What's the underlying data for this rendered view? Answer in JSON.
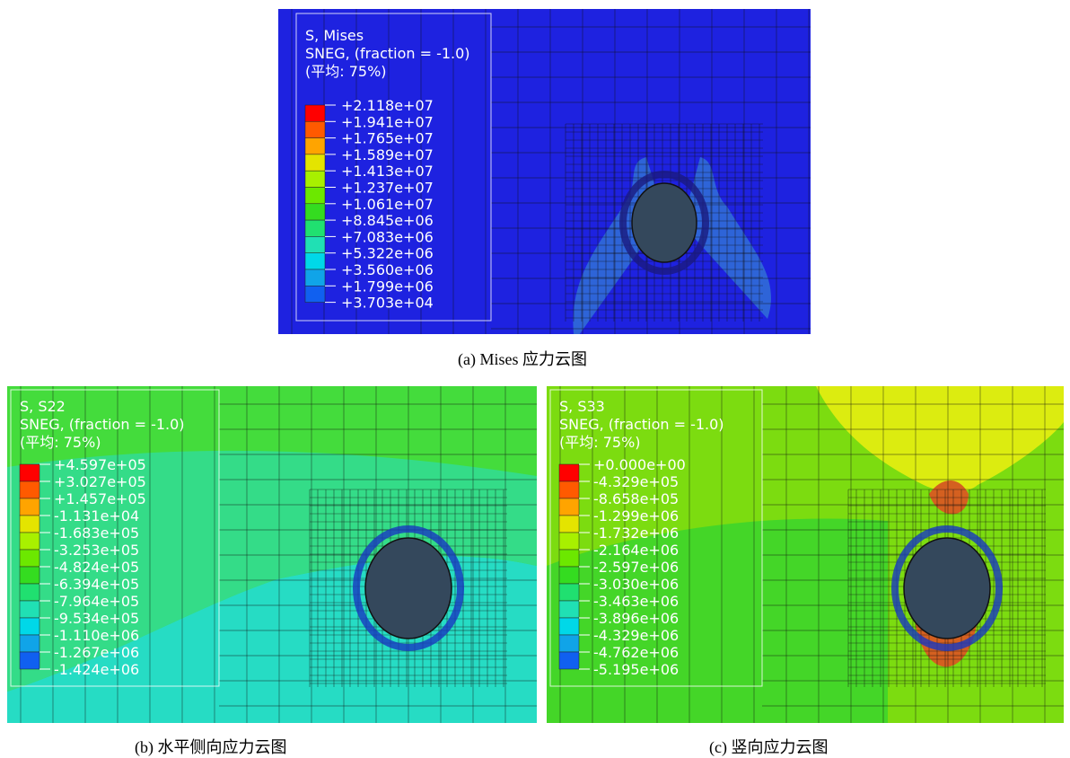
{
  "panels": [
    {
      "legend_title": [
        "S, Mises",
        "SNEG, (fraction = -1.0)",
        "(平均: 75%)"
      ],
      "legend_labels": [
        "+2.118e+07",
        "+1.941e+07",
        "+1.765e+07",
        "+1.589e+07",
        "+1.413e+07",
        "+1.237e+07",
        "+1.061e+07",
        "+8.845e+06",
        "+7.083e+06",
        "+5.322e+06",
        "+3.560e+06",
        "+1.799e+06",
        "+3.703e+04"
      ],
      "caption": "(a) Mises 应力云图"
    },
    {
      "legend_title": [
        "S, S22",
        "SNEG, (fraction = -1.0)",
        "(平均: 75%)"
      ],
      "legend_labels": [
        "+4.597e+05",
        "+3.027e+05",
        "+1.457e+05",
        "-1.131e+04",
        "-1.683e+05",
        "-3.253e+05",
        "-4.824e+05",
        "-6.394e+05",
        "-7.964e+05",
        "-9.534e+05",
        "-1.110e+06",
        "-1.267e+06",
        "-1.424e+06"
      ],
      "caption": "(b)  水平侧向应力云图"
    },
    {
      "legend_title": [
        "S, S33",
        "SNEG, (fraction = -1.0)",
        "(平均: 75%)"
      ],
      "legend_labels": [
        "+0.000e+00",
        "-4.329e+05",
        "-8.658e+05",
        "-1.299e+06",
        "-1.732e+06",
        "-2.164e+06",
        "-2.597e+06",
        "-3.030e+06",
        "-3.463e+06",
        "-3.896e+06",
        "-4.329e+06",
        "-4.762e+06",
        "-5.195e+06"
      ],
      "caption": "(c)  竖向应力云图"
    }
  ]
}
